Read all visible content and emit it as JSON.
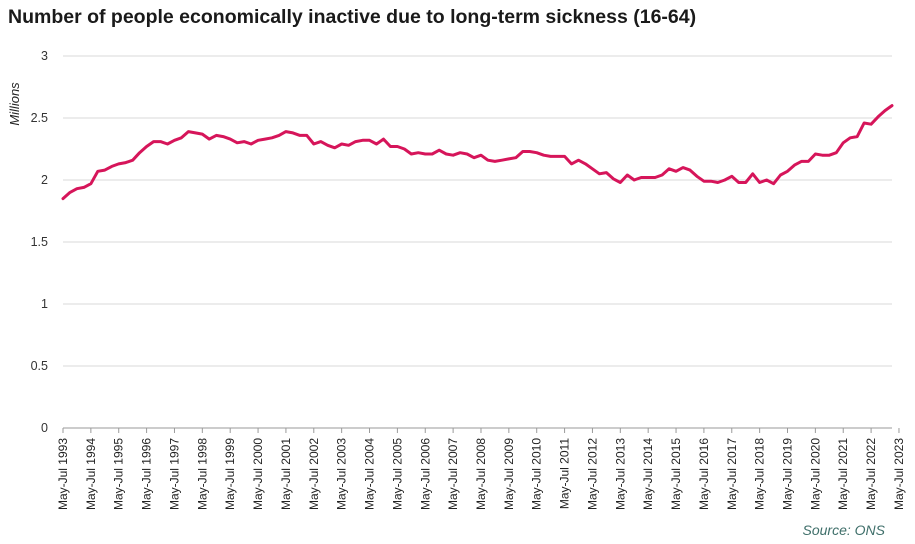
{
  "chart_data": {
    "type": "line",
    "title": "Number of people economically inactive due to long-term sickness (16-64)",
    "ylabel": "Millions",
    "xlabel": "",
    "source": "Source: ONS",
    "ylim": [
      0,
      3
    ],
    "yticks": [
      "0",
      "0.5",
      "1",
      "1.5",
      "2",
      "2.5",
      "3"
    ],
    "grid": true,
    "line_color": "#d6155a",
    "x_tick_labels": [
      "May-Jul 1993",
      "May-Jul 1994",
      "May-Jul 1995",
      "May-Jul 1996",
      "May-Jul 1997",
      "May-Jul 1998",
      "May-Jul 1999",
      "May-Jul 2000",
      "May-Jul 2001",
      "May-Jul 2002",
      "May-Jul 2003",
      "May-Jul 2004",
      "May-Jul 2005",
      "May-Jul 2006",
      "May-Jul 2007",
      "May-Jul 2008",
      "May-Jul 2009",
      "May-Jul 2010",
      "May-Jul 2011",
      "May-Jul 2012",
      "May-Jul 2013",
      "May-Jul 2014",
      "May-Jul 2015",
      "May-Jul 2016",
      "May-Jul 2017",
      "May-Jul 2018",
      "May-Jul 2019",
      "May-Jul 2020",
      "May-Jul 2021",
      "May-Jul 2022",
      "May-Jul 2023"
    ],
    "series": [
      {
        "name": "",
        "values": [
          1.85,
          1.9,
          1.93,
          1.94,
          1.97,
          2.07,
          2.08,
          2.11,
          2.13,
          2.14,
          2.16,
          2.22,
          2.27,
          2.31,
          2.31,
          2.29,
          2.32,
          2.34,
          2.39,
          2.38,
          2.37,
          2.33,
          2.36,
          2.35,
          2.33,
          2.3,
          2.31,
          2.29,
          2.32,
          2.33,
          2.34,
          2.36,
          2.39,
          2.38,
          2.36,
          2.36,
          2.29,
          2.31,
          2.28,
          2.26,
          2.29,
          2.28,
          2.31,
          2.32,
          2.32,
          2.29,
          2.33,
          2.27,
          2.27,
          2.25,
          2.21,
          2.22,
          2.21,
          2.21,
          2.24,
          2.21,
          2.2,
          2.22,
          2.21,
          2.18,
          2.2,
          2.16,
          2.15,
          2.16,
          2.17,
          2.18,
          2.23,
          2.23,
          2.22,
          2.2,
          2.19,
          2.19,
          2.19,
          2.13,
          2.16,
          2.13,
          2.09,
          2.05,
          2.06,
          2.01,
          1.98,
          2.04,
          2.0,
          2.02,
          2.02,
          2.02,
          2.04,
          2.09,
          2.07,
          2.1,
          2.08,
          2.03,
          1.99,
          1.99,
          1.98,
          2.0,
          2.03,
          1.98,
          1.98,
          2.05,
          1.98,
          2.0,
          1.97,
          2.04,
          2.07,
          2.12,
          2.15,
          2.15,
          2.21,
          2.2,
          2.2,
          2.22,
          2.3,
          2.34,
          2.35,
          2.46,
          2.45,
          2.51,
          2.56,
          2.6
        ]
      }
    ]
  }
}
